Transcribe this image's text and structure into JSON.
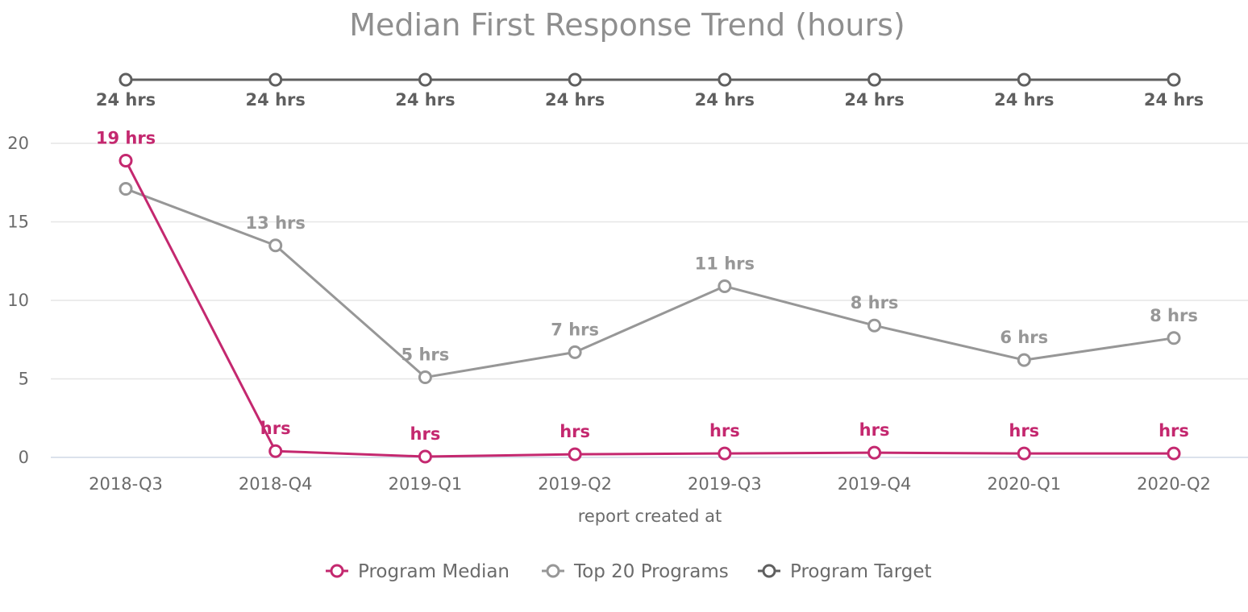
{
  "chart_data": {
    "type": "line",
    "title": "Median First Response Trend (hours)",
    "xlabel": "report created at",
    "ylabel": "",
    "categories": [
      "2018-Q3",
      "2018-Q4",
      "2019-Q1",
      "2019-Q2",
      "2019-Q3",
      "2019-Q4",
      "2020-Q1",
      "2020-Q2"
    ],
    "ylim": [
      0,
      20
    ],
    "yticks": [
      "0",
      "5",
      "10",
      "15",
      "20"
    ],
    "grid": true,
    "legend_position": "bottom",
    "series": [
      {
        "name": "Program Median",
        "color": "#c4286f",
        "values": [
          18.9,
          0.4,
          0.05,
          0.2,
          0.25,
          0.3,
          0.25,
          0.25
        ],
        "labels": [
          "19 hrs",
          "hrs",
          "hrs",
          "hrs",
          "hrs",
          "hrs",
          "hrs",
          "hrs"
        ]
      },
      {
        "name": "Top 20 Programs",
        "color": "#979797",
        "values": [
          17.1,
          13.5,
          5.1,
          6.7,
          10.9,
          8.4,
          6.2,
          7.6
        ],
        "labels": [
          "",
          "13 hrs",
          "5 hrs",
          "7 hrs",
          "11 hrs",
          "8 hrs",
          "6 hrs",
          "8 hrs"
        ]
      },
      {
        "name": "Program Target",
        "color": "#5f5f5f",
        "values": [
          24,
          24,
          24,
          24,
          24,
          24,
          24,
          24
        ],
        "labels": [
          "24 hrs",
          "24 hrs",
          "24 hrs",
          "24 hrs",
          "24 hrs",
          "24 hrs",
          "24 hrs",
          "24 hrs"
        ]
      }
    ]
  }
}
